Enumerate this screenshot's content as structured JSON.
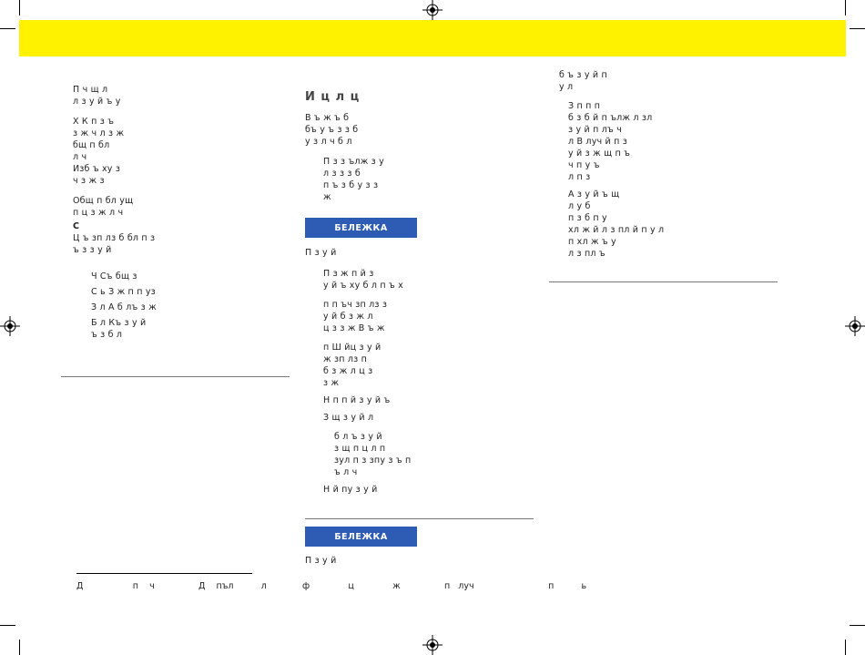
{
  "left_col": {
    "p1": "П    ч щ                         л\nл              з             у      й            ъ            у",
    "p2": "Х                       К           п      з      ъ\n                    з      ж            ч  л           з      ж\n                  бщ       п        бл\nл       ч\nИзб                        ъ  ху                  з\n    ч             з      ж                з",
    "p3": "Общ        п        бл                                         ущ\nп   ц           з      ж                  л         ч",
    "p4_head": "С",
    "p4": "Ц       ъ        зп  лз                  б                 бл    п      з\n  ъ                             з                     з                у      й",
    "items": [
      "Ч             Съ  бщ         з",
      "С    ь    З         ж                    п               п  уз",
      "З   л          А             б  лъ        з         ж",
      "Б   л    Къ    з                     у       й\n        ъ     з                       б  л"
    ]
  },
  "mid_col": {
    "heading": "И            ц                   л          ц",
    "p1": "В                ъ     ж           ъ                                              б\nбъ      у                                              ъ    з            з              б\n  у            з      л          ч                         б  л",
    "p2": "П                з    з     ълж          з    у\n  л                   з                        з                     з       б\nп                 ъ    з                       б      у                 з     з\nж",
    "note1_label": "БЕЛЕЖКА",
    "p3": "П                          з                 у       й",
    "p4": "П      з          ж                            п             й     з\nу        й              ъ    ху          б    л      п     ъ    х",
    "p5": "               п     п     ъч              зп   лз            з\nу         й                б  з                                 ж     л\n       ц      з     з       ж               В                  ъ     ж",
    "p6": "п                  Ш      йц              з                     у        й\n   ж                  зп   лз                       п\nб    з                                            ж     л                         ц           з\nз       ж",
    "p7": "Н      п      п   й       з                   у        й              ъ",
    "p8": "З     щ             з                     у       й                              л",
    "p9": "       б                                     л          ъ     з                    у        й\n                     з   щ                     п             ц    л      п\n            зул              п           з                  зпу                    з    ъ    п\n                       ъ               л           ч",
    "p10": "Н                   й               пу           з                        у        й",
    "note2_label": "БЕЛЕЖКА",
    "p11": "П                          з                 у       й"
  },
  "right_col": {
    "p1": "б                ъ    з                       у         й                                      п\n  у                                л",
    "p2": "З         п                                   п                      п\n       б          з  б          й     п        ълж          л          зл\n         з                    у            й                     п               лъ    ч\n              л            В    луч  й       п                              з\n                    у           й             з         ж                 щ    п       ъ\n                           ч                                 п               у                       ъ\n                              л                п  з",
    "p3": "А       з                      у          й                     ъ                  щ\n     л        у                                                                     б\n            п   з                         б                   п          у\n     хл   ж      й        л    з      пл   й     п          у               л\nп                                 хл    ж                ъ          у\n       л         з       пл            ъ"
  },
  "footnote": "Д                  п    ч                Д    пъл          л             ф              ц              ж                п   луч                           п          ь"
}
